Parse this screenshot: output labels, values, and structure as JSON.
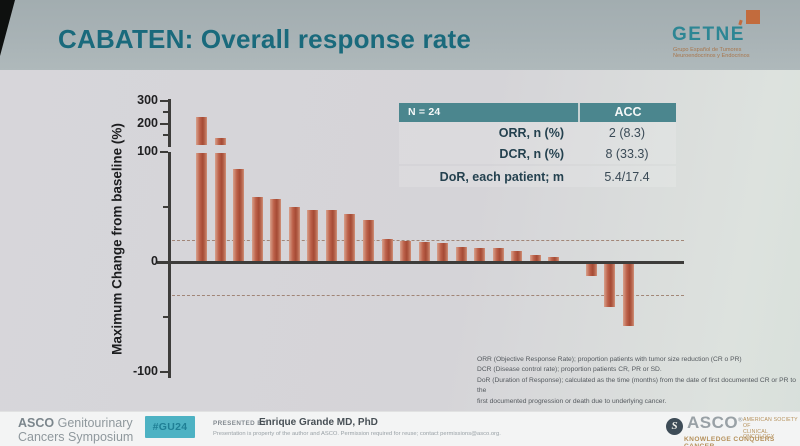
{
  "slide": {
    "title": "CABATEN: Overall response rate"
  },
  "getne_logo": {
    "name": "GETNE",
    "tagline_line1": "Grupo Español de Tumores",
    "tagline_line2": "Neuroendocrinos y Endocrinos",
    "square_color": "#c26b3d"
  },
  "results_table": {
    "header": {
      "col1": "N = 24",
      "col2": "ACC"
    },
    "rows": [
      {
        "label": "ORR, n (%)",
        "value": "2 (8.3)"
      },
      {
        "label": "DCR, n (%)",
        "value": "8 (33.3)"
      },
      {
        "label": "DoR, each patient; m",
        "value": "5.4/17.4"
      }
    ]
  },
  "chart_data": {
    "type": "bar",
    "title": "",
    "ylabel": "Maximum Change from baseline (%)",
    "xlabel": "",
    "ylim": [
      -100,
      300
    ],
    "axis_break_above": 100,
    "y_major_ticks": [
      300,
      200,
      100,
      0,
      -100
    ],
    "y_minor_ticks": [
      250,
      150,
      50,
      -50
    ],
    "reference_lines": [
      20,
      -30
    ],
    "n_patients": 24,
    "values": [
      230,
      135,
      85,
      59,
      57,
      50,
      47,
      47,
      44,
      38,
      21,
      19,
      18,
      17,
      14,
      13,
      13,
      10,
      6,
      5,
      0,
      -12,
      -40,
      -57
    ],
    "bar_color": "#b4593f",
    "grid": false,
    "legend_position": "none"
  },
  "footnotes": [
    "ORR (Objective Response Rate); proportion patients with tumor size reduction (CR o PR)",
    "DCR (Disease control rate); proportion patients CR, PR or SD.",
    "DoR (Duration of Response); calculated as the time (months) from the date of first documented CR or PR to the",
    "first documented progression or death due to underlying cancer."
  ],
  "footer": {
    "event_brand": "ASCO",
    "event_line1_rest": " Genitourinary",
    "event_line2": "Cancers Symposium",
    "hashtag": "#GU24",
    "presented_by_label": "PRESENTED BY:",
    "presenter": "Enrique Grande MD, PhD",
    "disclaimer": "Presentation is property of the author and ASCO. Permission required for reuse; contact permissions@asco.org.",
    "asco_logo": {
      "name": "ASCO",
      "reg": "®",
      "monogram": "S",
      "society_line1": "AMERICAN SOCIETY OF",
      "society_line2": "CLINICAL ONCOLOGY",
      "tagline": "KNOWLEDGE CONQUERS CANCER"
    }
  },
  "colors": {
    "title_teal": "#1a6a7c",
    "table_header_teal": "#4b868e",
    "bar_terracotta": "#b4593f",
    "hashtag_teal": "#4db2c3",
    "asco_gold": "#b5905a",
    "getne_orange": "#c26b3d"
  }
}
